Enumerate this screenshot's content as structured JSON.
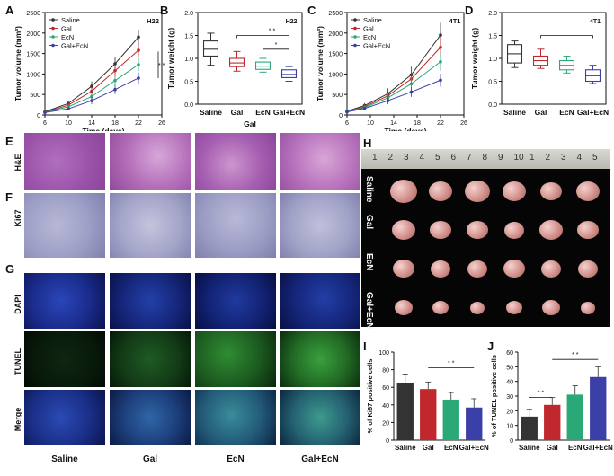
{
  "panels": {
    "A": "A",
    "B": "B",
    "C": "C",
    "D": "D",
    "E": "E",
    "F": "F",
    "G": "G",
    "H": "H",
    "I": "I",
    "J": "J"
  },
  "colors": {
    "saline": "#333333",
    "gal": "#c0282d",
    "ecn": "#2aa876",
    "galecn": "#3b3fa8"
  },
  "groups": [
    "Saline",
    "Gal",
    "EcN",
    "Gal+EcN"
  ],
  "chart_data": [
    {
      "id": "A",
      "type": "line",
      "annotation": "H22",
      "ylabel": "Tumor volume (mm³)",
      "xlabel": "Time (days)",
      "xlim": [
        6,
        26
      ],
      "ylim": [
        0,
        2500
      ],
      "xticks": [
        "6",
        "10",
        "14",
        "18",
        "22",
        "26"
      ],
      "yticks": [
        "0",
        "500",
        "1000",
        "1500",
        "2000",
        "2500"
      ],
      "x": [
        6,
        10,
        14,
        18,
        22
      ],
      "series": [
        {
          "name": "Saline",
          "values": [
            80,
            280,
            700,
            1250,
            1900
          ],
          "err": [
            20,
            60,
            120,
            160,
            180
          ]
        },
        {
          "name": "Gal",
          "values": [
            70,
            240,
            580,
            1080,
            1580
          ],
          "err": [
            20,
            60,
            110,
            150,
            170
          ]
        },
        {
          "name": "EcN",
          "values": [
            65,
            200,
            450,
            840,
            1230
          ],
          "err": [
            20,
            50,
            100,
            130,
            160
          ]
        },
        {
          "name": "Gal+EcN",
          "values": [
            60,
            150,
            350,
            620,
            900
          ],
          "err": [
            15,
            40,
            90,
            110,
            140
          ]
        }
      ],
      "sig": "* *"
    },
    {
      "id": "B",
      "type": "box",
      "annotation": "H22",
      "ylabel": "Tumor weight (g)",
      "xlabel": "Gal",
      "ylim": [
        0.0,
        2.0
      ],
      "yticks": [
        "0.0",
        "0.5",
        "1.0",
        "1.5",
        "2.0"
      ],
      "categories": [
        "Saline",
        "Gal",
        "EcN",
        "Gal+EcN"
      ],
      "boxes": [
        {
          "min": 0.85,
          "q1": 1.05,
          "median": 1.2,
          "q3": 1.38,
          "max": 1.55
        },
        {
          "min": 0.72,
          "q1": 0.82,
          "median": 0.9,
          "q3": 1.0,
          "max": 1.15
        },
        {
          "min": 0.7,
          "q1": 0.76,
          "median": 0.83,
          "q3": 0.92,
          "max": 1.0
        },
        {
          "min": 0.5,
          "q1": 0.58,
          "median": 0.65,
          "q3": 0.75,
          "max": 0.82
        }
      ],
      "sig": [
        "* *",
        "*"
      ]
    },
    {
      "id": "C",
      "type": "line",
      "annotation": "4T1",
      "ylabel": "Tumor volume (mm³)",
      "xlabel": "Time (days)",
      "xlim": [
        6,
        26
      ],
      "ylim": [
        0,
        2500
      ],
      "xticks": [
        "6",
        "10",
        "14",
        "18",
        "22",
        "26"
      ],
      "yticks": [
        "0",
        "500",
        "1000",
        "1500",
        "2000",
        "2500"
      ],
      "x": [
        6,
        9,
        13,
        17,
        22
      ],
      "series": [
        {
          "name": "Saline",
          "values": [
            90,
            230,
            520,
            980,
            1950
          ],
          "err": [
            20,
            60,
            130,
            200,
            300
          ]
        },
        {
          "name": "Gal",
          "values": [
            85,
            200,
            470,
            880,
            1650
          ],
          "err": [
            20,
            60,
            120,
            180,
            250
          ]
        },
        {
          "name": "EcN",
          "values": [
            80,
            180,
            420,
            760,
            1300
          ],
          "err": [
            20,
            50,
            110,
            160,
            220
          ]
        },
        {
          "name": "Gal+EcN",
          "values": [
            75,
            160,
            350,
            560,
            850
          ],
          "err": [
            15,
            45,
            90,
            120,
            160
          ]
        }
      ]
    },
    {
      "id": "D",
      "type": "box",
      "annotation": "4T1",
      "ylabel": "Tumor weight (g)",
      "ylim": [
        0.0,
        2.0
      ],
      "yticks": [
        "0.0",
        "0.5",
        "1.0",
        "1.5",
        "2.0"
      ],
      "categories": [
        "Saline",
        "Gal",
        "EcN",
        "Gal+EcN"
      ],
      "boxes": [
        {
          "min": 0.8,
          "q1": 0.9,
          "median": 1.1,
          "q3": 1.3,
          "max": 1.38
        },
        {
          "min": 0.78,
          "q1": 0.85,
          "median": 0.95,
          "q3": 1.05,
          "max": 1.2
        },
        {
          "min": 0.68,
          "q1": 0.75,
          "median": 0.85,
          "q3": 0.95,
          "max": 1.05
        },
        {
          "min": 0.45,
          "q1": 0.5,
          "median": 0.62,
          "q3": 0.75,
          "max": 0.85
        }
      ]
    },
    {
      "id": "I",
      "type": "bar",
      "ylabel": "% of Ki67 positive cells",
      "ylim": [
        0,
        100
      ],
      "yticks": [
        "0",
        "20",
        "40",
        "60",
        "80",
        "100"
      ],
      "categories": [
        "Saline",
        "Gal",
        "EcN",
        "Gal+EcN"
      ],
      "values": [
        65,
        58,
        46,
        37
      ],
      "err": [
        10,
        8,
        8,
        10
      ],
      "sig": "* *"
    },
    {
      "id": "J",
      "type": "bar",
      "ylabel": "% of TUNEL positive cells",
      "ylim": [
        0,
        60
      ],
      "yticks": [
        "0",
        "10",
        "20",
        "30",
        "40",
        "50",
        "60"
      ],
      "categories": [
        "Saline",
        "Gal",
        "EcN",
        "Gal+EcN"
      ],
      "values": [
        16,
        24,
        31,
        43
      ],
      "err": [
        5,
        5,
        6,
        7
      ],
      "sig": [
        "* *",
        "* *"
      ]
    }
  ],
  "micro": {
    "rows_EF": [
      "H&E",
      "Ki67"
    ],
    "rows_G": [
      "DAPI",
      "TUNEL",
      "Merge"
    ],
    "cols": [
      "Saline",
      "Gal",
      "EcN",
      "Gal+EcN"
    ]
  },
  "photo": {
    "ruler_numbers": [
      "1",
      "2",
      "3",
      "4",
      "5",
      "6",
      "7",
      "8",
      "9",
      "10",
      "1",
      "2",
      "3",
      "4",
      "5"
    ],
    "rows": [
      "Saline",
      "Gal",
      "EcN",
      "Gal+EcN"
    ]
  }
}
